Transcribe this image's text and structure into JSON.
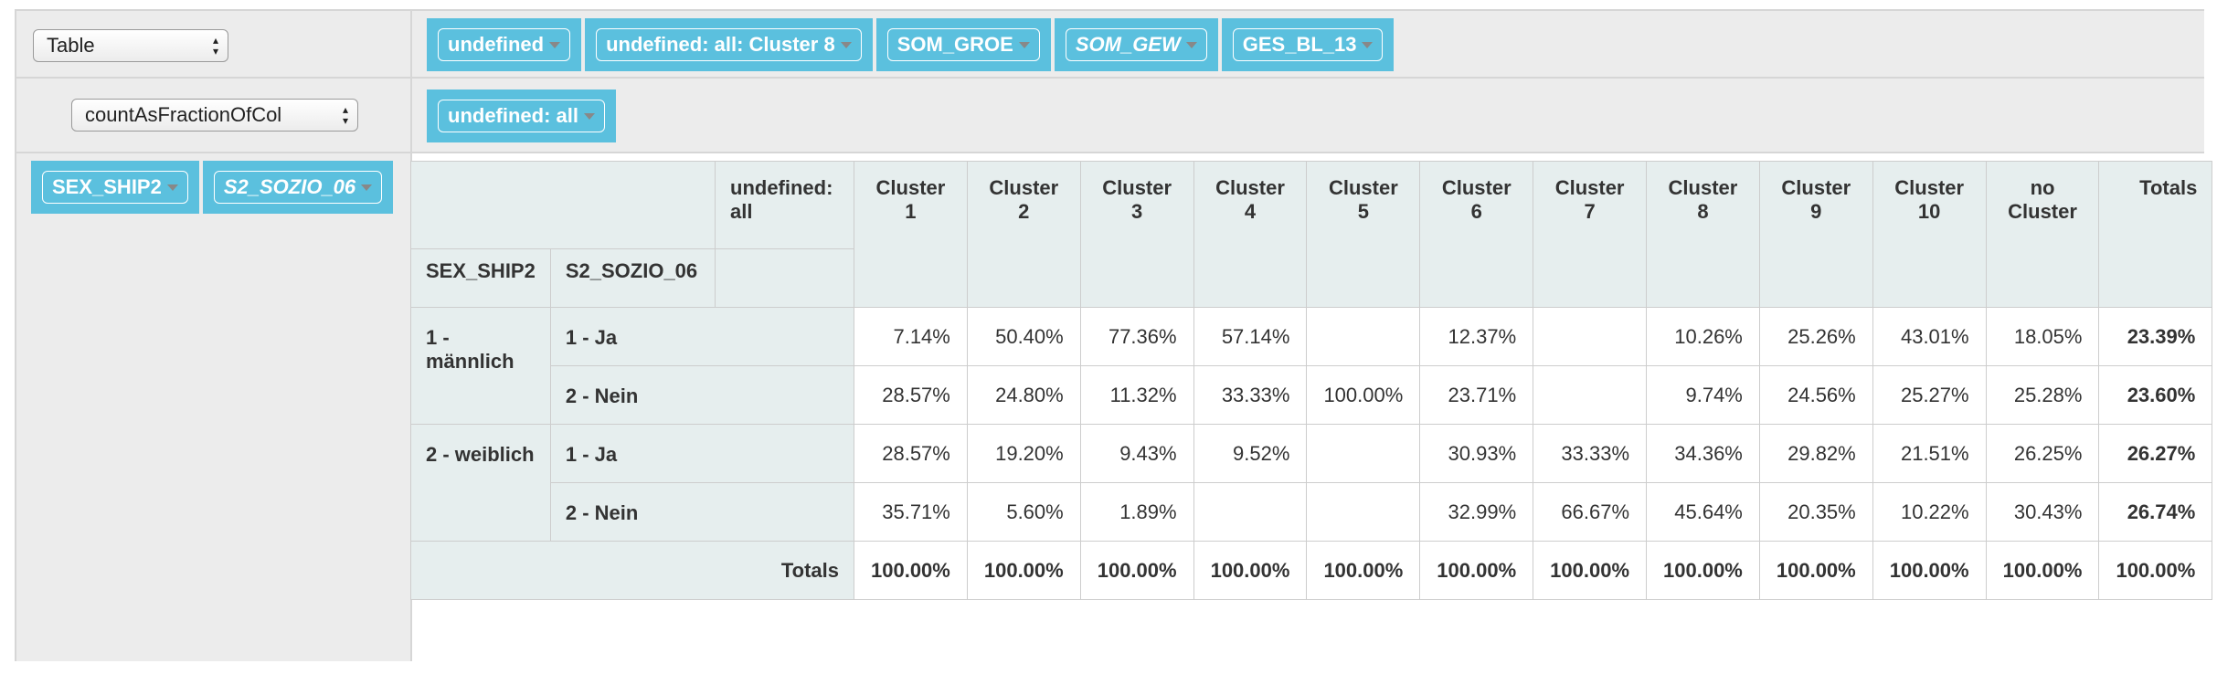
{
  "renderer": {
    "selected": "Table"
  },
  "aggregator": {
    "selected": "countAsFractionOfCol"
  },
  "col_attrs": [
    {
      "label": "undefined",
      "italic": false
    },
    {
      "label": "undefined: all: Cluster 8",
      "italic": false
    },
    {
      "label": "SOM_GROE",
      "italic": false
    },
    {
      "label": "SOM_GEW",
      "italic": true
    },
    {
      "label": "GES_BL_13",
      "italic": false
    }
  ],
  "val_attrs": [
    {
      "label": "undefined: all",
      "italic": false
    }
  ],
  "row_attrs": [
    {
      "label": "SEX_SHIP2",
      "italic": false
    },
    {
      "label": "S2_SOZIO_06",
      "italic": true
    }
  ],
  "pivot": {
    "col_header_label": "undefined: all",
    "row_header_labels": [
      "SEX_SHIP2",
      "S2_SOZIO_06"
    ],
    "col_headers": [
      "Cluster 1",
      "Cluster 2",
      "Cluster 3",
      "Cluster 4",
      "Cluster 5",
      "Cluster 6",
      "Cluster 7",
      "Cluster 8",
      "Cluster 9",
      "Cluster 10",
      "no Cluster"
    ],
    "totals_label": "Totals",
    "groups": [
      {
        "label": "1 - männlich",
        "rows": [
          {
            "label": "1 - Ja",
            "values": [
              "7.14%",
              "50.40%",
              "77.36%",
              "57.14%",
              "",
              "12.37%",
              "",
              "10.26%",
              "25.26%",
              "43.01%",
              "18.05%"
            ],
            "total": "23.39%"
          },
          {
            "label": "2 - Nein",
            "values": [
              "28.57%",
              "24.80%",
              "11.32%",
              "33.33%",
              "100.00%",
              "23.71%",
              "",
              "9.74%",
              "24.56%",
              "25.27%",
              "25.28%"
            ],
            "total": "23.60%"
          }
        ]
      },
      {
        "label": "2 - weiblich",
        "rows": [
          {
            "label": "1 - Ja",
            "values": [
              "28.57%",
              "19.20%",
              "9.43%",
              "9.52%",
              "",
              "30.93%",
              "33.33%",
              "34.36%",
              "29.82%",
              "21.51%",
              "26.25%"
            ],
            "total": "26.27%"
          },
          {
            "label": "2 - Nein",
            "values": [
              "35.71%",
              "5.60%",
              "1.89%",
              "",
              "",
              "32.99%",
              "66.67%",
              "45.64%",
              "20.35%",
              "10.22%",
              "30.43%"
            ],
            "total": "26.74%"
          }
        ]
      }
    ],
    "col_totals": [
      "100.00%",
      "100.00%",
      "100.00%",
      "100.00%",
      "100.00%",
      "100.00%",
      "100.00%",
      "100.00%",
      "100.00%",
      "100.00%",
      "100.00%"
    ],
    "grand_total": "100.00%"
  }
}
